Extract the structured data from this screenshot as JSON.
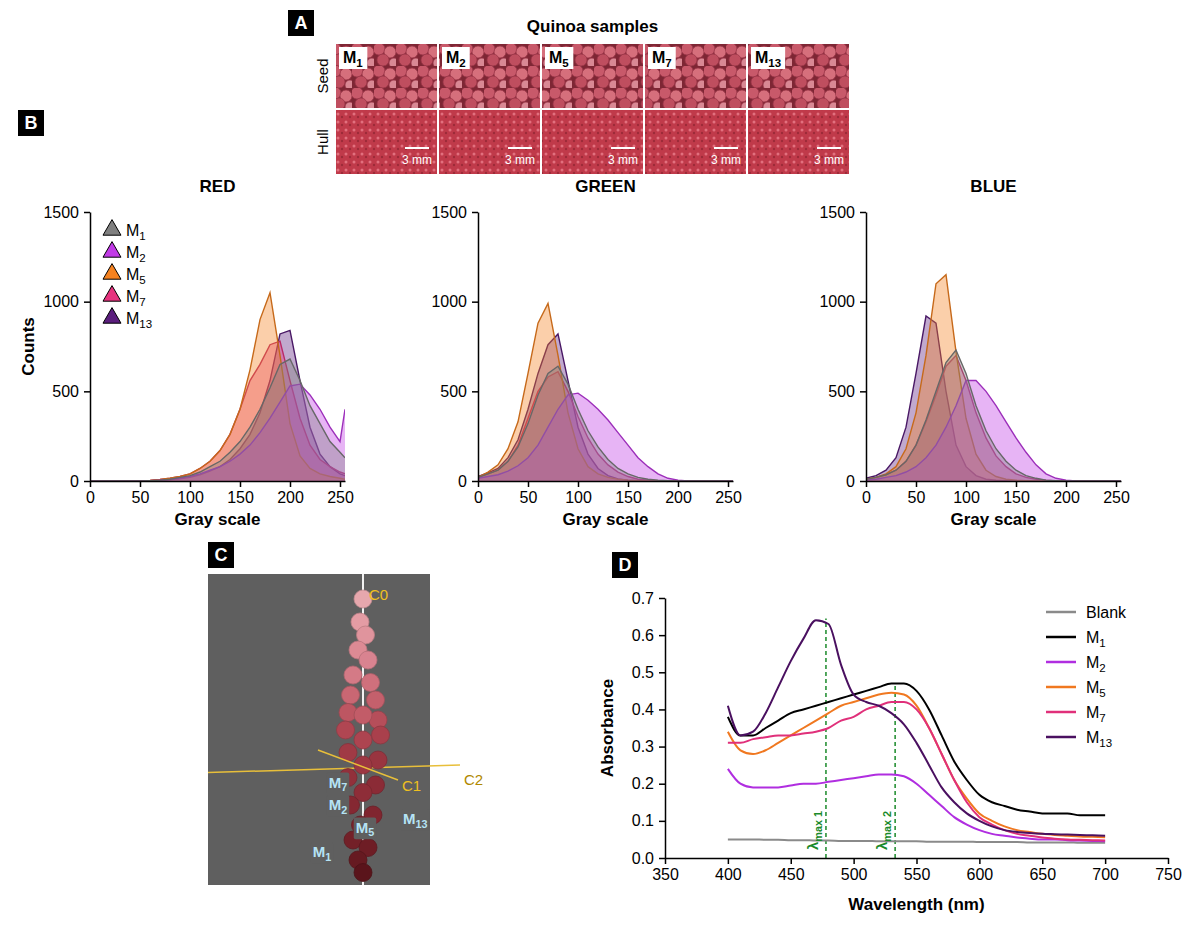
{
  "chart_data": [
    {
      "type": "image",
      "panel": "A",
      "title": "Quinoa samples",
      "row_labels": [
        "Seed",
        "Hull"
      ],
      "columns": [
        "M1",
        "M2",
        "M5",
        "M7",
        "M13"
      ],
      "scale_bar": "3 mm"
    },
    {
      "type": "area",
      "panel": "B",
      "title": "RED",
      "x_label": "Gray scale",
      "y_label": "Counts",
      "legend": "top-left",
      "marker": "triangle",
      "x": [
        0,
        10,
        20,
        30,
        40,
        50,
        60,
        70,
        80,
        90,
        100,
        110,
        120,
        130,
        140,
        150,
        160,
        170,
        180,
        190,
        200,
        210,
        220,
        230,
        240,
        250,
        255
      ],
      "xlim": [
        0,
        255
      ],
      "xticks": [
        0,
        50,
        100,
        150,
        200,
        250
      ],
      "ylim": [
        0,
        1500
      ],
      "yticks": [
        0,
        500,
        1000,
        1500
      ],
      "series": [
        {
          "name": "M1",
          "color": "#808080",
          "values": [
            0,
            0,
            0,
            0,
            0,
            0,
            2,
            5,
            10,
            20,
            30,
            50,
            80,
            110,
            160,
            220,
            300,
            400,
            520,
            650,
            680,
            560,
            420,
            320,
            220,
            160,
            130
          ]
        },
        {
          "name": "M2",
          "color": "#c13ae6",
          "values": [
            0,
            0,
            0,
            0,
            0,
            0,
            2,
            5,
            8,
            15,
            25,
            40,
            60,
            80,
            110,
            150,
            200,
            270,
            350,
            440,
            530,
            540,
            480,
            400,
            300,
            220,
            400
          ]
        },
        {
          "name": "M5",
          "color": "#f58220",
          "values": [
            0,
            0,
            0,
            0,
            0,
            0,
            3,
            8,
            15,
            25,
            40,
            70,
            110,
            170,
            260,
            400,
            620,
            900,
            1050,
            700,
            320,
            140,
            70,
            40,
            25,
            15,
            10
          ]
        },
        {
          "name": "M7",
          "color": "#e6337e",
          "values": [
            0,
            0,
            0,
            0,
            0,
            0,
            3,
            8,
            15,
            25,
            40,
            70,
            110,
            170,
            260,
            400,
            560,
            650,
            760,
            780,
            560,
            350,
            200,
            120,
            80,
            50,
            40
          ]
        },
        {
          "name": "M13",
          "color": "#5b1e7d",
          "values": [
            0,
            0,
            0,
            0,
            0,
            0,
            1,
            3,
            6,
            12,
            20,
            35,
            55,
            80,
            120,
            180,
            260,
            380,
            560,
            820,
            840,
            560,
            300,
            150,
            80,
            40,
            30
          ]
        }
      ]
    },
    {
      "type": "area",
      "title": "GREEN",
      "x_label": "Gray scale",
      "x": [
        0,
        10,
        20,
        30,
        40,
        50,
        60,
        70,
        80,
        90,
        100,
        110,
        120,
        130,
        140,
        150,
        160,
        170,
        180,
        190,
        200,
        210,
        220,
        230,
        240,
        250,
        255
      ],
      "xlim": [
        0,
        255
      ],
      "xticks": [
        0,
        50,
        100,
        150,
        200,
        250
      ],
      "ylim": [
        0,
        1500
      ],
      "yticks": [
        0,
        500,
        1000,
        1500
      ],
      "series": [
        {
          "name": "M1",
          "color": "#808080",
          "values": [
            20,
            40,
            60,
            110,
            190,
            320,
            480,
            600,
            640,
            540,
            400,
            280,
            190,
            120,
            70,
            40,
            20,
            10,
            5,
            2,
            0,
            0,
            0,
            0,
            0,
            0,
            0
          ]
        },
        {
          "name": "M2",
          "color": "#c13ae6",
          "values": [
            15,
            25,
            35,
            55,
            85,
            130,
            200,
            300,
            400,
            480,
            490,
            450,
            400,
            340,
            270,
            200,
            130,
            80,
            40,
            15,
            5,
            0,
            0,
            0,
            0,
            0,
            0
          ]
        },
        {
          "name": "M5",
          "color": "#f58220",
          "values": [
            20,
            50,
            90,
            180,
            330,
            600,
            880,
            990,
            700,
            380,
            180,
            80,
            40,
            20,
            10,
            5,
            2,
            0,
            0,
            0,
            0,
            0,
            0,
            0,
            0,
            0,
            0
          ]
        },
        {
          "name": "M7",
          "color": "#e6337e",
          "values": [
            20,
            40,
            60,
            110,
            200,
            350,
            500,
            580,
            610,
            500,
            360,
            240,
            150,
            90,
            50,
            25,
            10,
            5,
            2,
            0,
            0,
            0,
            0,
            0,
            0,
            0,
            0
          ]
        },
        {
          "name": "M13",
          "color": "#5b1e7d",
          "values": [
            25,
            45,
            70,
            130,
            230,
            400,
            600,
            760,
            820,
            560,
            300,
            150,
            70,
            30,
            12,
            5,
            2,
            0,
            0,
            0,
            0,
            0,
            0,
            0,
            0,
            0,
            0
          ]
        }
      ]
    },
    {
      "type": "area",
      "title": "BLUE",
      "x_label": "Gray scale",
      "x": [
        0,
        10,
        20,
        30,
        40,
        50,
        60,
        70,
        80,
        90,
        100,
        110,
        120,
        130,
        140,
        150,
        160,
        170,
        180,
        190,
        200,
        210,
        220,
        230,
        240,
        250,
        255
      ],
      "xlim": [
        0,
        255
      ],
      "xticks": [
        0,
        50,
        100,
        150,
        200,
        250
      ],
      "ylim": [
        0,
        1500
      ],
      "yticks": [
        0,
        500,
        1000,
        1500
      ],
      "series": [
        {
          "name": "M1",
          "color": "#808080",
          "values": [
            10,
            20,
            35,
            60,
            110,
            200,
            340,
            500,
            660,
            730,
            600,
            420,
            280,
            180,
            110,
            60,
            30,
            15,
            5,
            2,
            0,
            0,
            0,
            0,
            0,
            0,
            0
          ]
        },
        {
          "name": "M2",
          "color": "#c13ae6",
          "values": [
            5,
            10,
            20,
            30,
            50,
            80,
            130,
            200,
            300,
            420,
            560,
            560,
            500,
            420,
            330,
            240,
            160,
            90,
            40,
            15,
            5,
            0,
            0,
            0,
            0,
            0,
            0
          ]
        },
        {
          "name": "M5",
          "color": "#f58220",
          "values": [
            10,
            20,
            40,
            80,
            180,
            380,
            700,
            1100,
            1150,
            720,
            350,
            150,
            60,
            25,
            10,
            5,
            2,
            0,
            0,
            0,
            0,
            0,
            0,
            0,
            0,
            0,
            0
          ]
        },
        {
          "name": "M7",
          "color": "#e6337e",
          "values": [
            10,
            20,
            35,
            60,
            110,
            200,
            330,
            480,
            640,
            700,
            560,
            380,
            240,
            140,
            80,
            40,
            20,
            10,
            4,
            0,
            0,
            0,
            0,
            0,
            0,
            0,
            0
          ]
        },
        {
          "name": "M13",
          "color": "#5b1e7d",
          "values": [
            15,
            30,
            60,
            130,
            300,
            600,
            920,
            880,
            500,
            200,
            80,
            30,
            10,
            4,
            2,
            0,
            0,
            0,
            0,
            0,
            0,
            0,
            0,
            0,
            0,
            0,
            0
          ]
        }
      ]
    },
    {
      "type": "scatter",
      "panel": "C",
      "tick_labels": false,
      "axis_labels": [
        "C0",
        "C1",
        "C2"
      ],
      "xlim": [
        -3.1,
        1.34
      ],
      "ylim": [
        -3.1,
        3.12
      ],
      "x": [
        0,
        -0.06,
        0.05,
        -0.1,
        0.1,
        -0.2,
        0.15,
        -0.25,
        0.25,
        -0.3,
        0.3,
        0,
        -0.35,
        0.35,
        0,
        -0.3,
        0.3,
        0,
        -0.3,
        0.25,
        0,
        -0.25,
        0.2,
        -0.05,
        -0.2,
        0.1,
        -0.1,
        0
      ],
      "values": [
        2.62,
        2.16,
        1.9,
        1.6,
        1.4,
        1.1,
        0.95,
        0.7,
        0.6,
        0.35,
        0.2,
        0.3,
        0,
        -0.1,
        -0.2,
        -0.45,
        -0.6,
        -0.7,
        -0.95,
        -1.1,
        -1.25,
        -1.5,
        -1.7,
        -1.9,
        -2.2,
        -2.35,
        -2.6,
        -2.85
      ],
      "colors": [
        "#e6a7ad",
        "#e49ca4",
        "#e0949d",
        "#dd8a94",
        "#d98390",
        "#d47a86",
        "#cf707c",
        "#c96773",
        "#c4606c",
        "#bd5662",
        "#b64e5a",
        "#c25c68",
        "#b04652",
        "#a9404c",
        "#ad4450",
        "#a03a45",
        "#993540",
        "#9c3742",
        "#92303b",
        "#8b2b36",
        "#8e2d38",
        "#852832",
        "#80252f",
        "#7a222b",
        "#732028",
        "#6e1d25",
        "#661a21",
        "#5a141b"
      ],
      "annotations": [
        {
          "text": "M7",
          "x": -0.5,
          "y": -1.05
        },
        {
          "text": "M2",
          "x": -0.5,
          "y": -1.5
        },
        {
          "text": "M13",
          "x": 0.8,
          "y": -1.78
        },
        {
          "text": "M5",
          "x": 0.04,
          "y": -1.95
        },
        {
          "text": "M1",
          "x": -0.82,
          "y": -2.44
        }
      ]
    },
    {
      "type": "line",
      "panel": "D",
      "x_label": "Wavelength (nm)",
      "y_label": "Absorbance",
      "legend": "top-right",
      "x": [
        400,
        410,
        420,
        430,
        440,
        450,
        460,
        470,
        480,
        490,
        500,
        510,
        520,
        530,
        540,
        550,
        560,
        570,
        580,
        590,
        600,
        610,
        620,
        630,
        640,
        650,
        660,
        670,
        680,
        690,
        700
      ],
      "xlim": [
        350,
        750
      ],
      "xticks": [
        350,
        400,
        450,
        500,
        550,
        600,
        650,
        700,
        750
      ],
      "ylim": [
        0,
        0.7
      ],
      "yticks": [
        {
          "value": 0,
          "label": "0.0"
        },
        0.1,
        0.2,
        0.3,
        0.4,
        0.5,
        0.6,
        0.7
      ],
      "series": [
        {
          "name": "Blank",
          "color": "#8a8a8a",
          "values": [
            0.05,
            0.05,
            0.05,
            0.049,
            0.049,
            0.048,
            0.048,
            0.047,
            0.047,
            0.046,
            0.046,
            0.046,
            0.045,
            0.045,
            0.045,
            0.045,
            0.044,
            0.044,
            0.044,
            0.044,
            0.043,
            0.043,
            0.043,
            0.043,
            0.042,
            0.042,
            0.042,
            0.042,
            0.041,
            0.041,
            0.041
          ]
        },
        {
          "name": "M1",
          "color": "#000000",
          "values": [
            0.38,
            0.33,
            0.33,
            0.35,
            0.37,
            0.39,
            0.4,
            0.41,
            0.42,
            0.43,
            0.44,
            0.45,
            0.46,
            0.47,
            0.47,
            0.45,
            0.4,
            0.33,
            0.26,
            0.21,
            0.17,
            0.15,
            0.14,
            0.13,
            0.125,
            0.12,
            0.12,
            0.12,
            0.115,
            0.115,
            0.115
          ]
        },
        {
          "name": "M2",
          "color": "#b02ee0",
          "values": [
            0.24,
            0.2,
            0.19,
            0.19,
            0.19,
            0.195,
            0.2,
            0.2,
            0.205,
            0.21,
            0.215,
            0.22,
            0.225,
            0.225,
            0.22,
            0.2,
            0.17,
            0.14,
            0.11,
            0.09,
            0.075,
            0.065,
            0.06,
            0.055,
            0.052,
            0.05,
            0.05,
            0.048,
            0.047,
            0.046,
            0.045
          ]
        },
        {
          "name": "M5",
          "color": "#f07820",
          "values": [
            0.34,
            0.29,
            0.28,
            0.29,
            0.31,
            0.33,
            0.35,
            0.37,
            0.39,
            0.41,
            0.42,
            0.43,
            0.44,
            0.445,
            0.44,
            0.41,
            0.35,
            0.28,
            0.21,
            0.16,
            0.12,
            0.1,
            0.085,
            0.075,
            0.07,
            0.065,
            0.062,
            0.06,
            0.058,
            0.057,
            0.056
          ]
        },
        {
          "name": "M7",
          "color": "#e0307a",
          "values": [
            0.31,
            0.31,
            0.32,
            0.325,
            0.33,
            0.33,
            0.335,
            0.34,
            0.35,
            0.37,
            0.38,
            0.4,
            0.41,
            0.42,
            0.42,
            0.4,
            0.35,
            0.28,
            0.21,
            0.15,
            0.11,
            0.09,
            0.075,
            0.065,
            0.06,
            0.055,
            0.052,
            0.05,
            0.049,
            0.048,
            0.047
          ]
        },
        {
          "name": "M13",
          "color": "#4a1060",
          "values": [
            0.41,
            0.33,
            0.34,
            0.39,
            0.46,
            0.53,
            0.59,
            0.64,
            0.63,
            0.52,
            0.44,
            0.42,
            0.41,
            0.39,
            0.36,
            0.31,
            0.25,
            0.19,
            0.15,
            0.12,
            0.1,
            0.085,
            0.075,
            0.07,
            0.067,
            0.065,
            0.064,
            0.063,
            0.062,
            0.061,
            0.06
          ]
        }
      ],
      "annotations": [
        {
          "text": "λmax 1",
          "x": 478,
          "y": 0.645
        },
        {
          "text": "λmax 2",
          "x": 533,
          "y": 0.47
        }
      ]
    }
  ]
}
